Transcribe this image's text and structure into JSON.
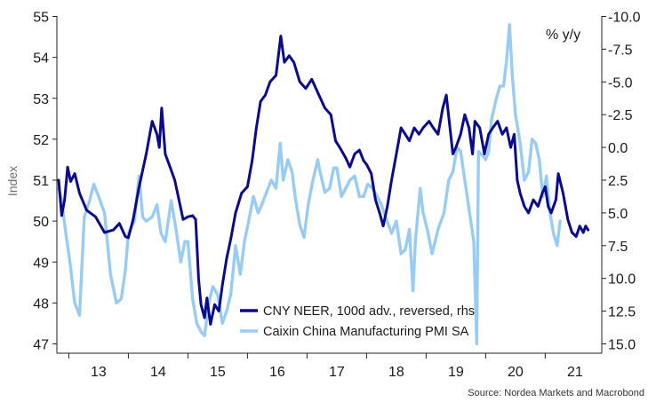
{
  "chart_data": {
    "type": "line",
    "ylabel_left": "Index",
    "ylabel_right": "% y/y",
    "source": "Source: Nordea Markets and Macrobond",
    "y_left": {
      "min": 47,
      "max": 55,
      "ticks": [
        47,
        48,
        49,
        50,
        51,
        52,
        53,
        54,
        55
      ],
      "tick_labels": [
        "47",
        "48",
        "49",
        "50",
        "51",
        "52",
        "53",
        "54",
        "55"
      ]
    },
    "y_right": {
      "min": -10.0,
      "max": 15.0,
      "reversed": true,
      "ticks": [
        -10.0,
        -7.5,
        -5.0,
        -2.5,
        0.0,
        2.5,
        5.0,
        7.5,
        10.0,
        12.5,
        15.0
      ],
      "tick_labels": [
        "-10.0",
        "-7.5",
        "-5.0",
        "-2.5",
        "0.0",
        "2.5",
        "5.0",
        "7.5",
        "10.0",
        "12.5",
        "15.0"
      ]
    },
    "x": {
      "min": 2012.8,
      "max": 2021.95,
      "ticks": [
        2013,
        2014,
        2015,
        2016,
        2017,
        2018,
        2019,
        2020,
        2021,
        2022
      ],
      "labels": [
        {
          "label": "13",
          "at": 2013.5
        },
        {
          "label": "14",
          "at": 2014.5
        },
        {
          "label": "15",
          "at": 2015.5
        },
        {
          "label": "16",
          "at": 2016.5
        },
        {
          "label": "17",
          "at": 2017.5
        },
        {
          "label": "18",
          "at": 2018.5
        },
        {
          "label": "19",
          "at": 2019.5
        },
        {
          "label": "20",
          "at": 2020.5
        },
        {
          "label": "21",
          "at": 2021.5
        }
      ]
    },
    "series": [
      {
        "name": "CNY NEER, 100d adv., reversed, rhs",
        "axis": "right",
        "color": "#0a0a8c",
        "points": [
          [
            2012.83,
            2.5
          ],
          [
            2012.88,
            5.2
          ],
          [
            2012.93,
            4.0
          ],
          [
            2012.98,
            1.5
          ],
          [
            2013.03,
            2.6
          ],
          [
            2013.1,
            2.0
          ],
          [
            2013.18,
            3.5
          ],
          [
            2013.3,
            4.8
          ],
          [
            2013.45,
            5.3
          ],
          [
            2013.6,
            6.5
          ],
          [
            2013.75,
            6.3
          ],
          [
            2013.85,
            5.8
          ],
          [
            2013.95,
            6.8
          ],
          [
            2014.0,
            6.9
          ],
          [
            2014.08,
            5.5
          ],
          [
            2014.18,
            3.0
          ],
          [
            2014.3,
            0.5
          ],
          [
            2014.4,
            -2.0
          ],
          [
            2014.48,
            -1.0
          ],
          [
            2014.52,
            0.0
          ],
          [
            2014.56,
            -3.0
          ],
          [
            2014.62,
            0.5
          ],
          [
            2014.7,
            1.5
          ],
          [
            2014.78,
            2.5
          ],
          [
            2014.85,
            4.0
          ],
          [
            2014.92,
            5.5
          ],
          [
            2015.0,
            5.3
          ],
          [
            2015.08,
            5.2
          ],
          [
            2015.13,
            5.5
          ],
          [
            2015.18,
            10.0
          ],
          [
            2015.22,
            12.0
          ],
          [
            2015.28,
            13.0
          ],
          [
            2015.32,
            11.5
          ],
          [
            2015.38,
            13.5
          ],
          [
            2015.45,
            12.0
          ],
          [
            2015.52,
            12.5
          ],
          [
            2015.58,
            10.5
          ],
          [
            2015.65,
            8.5
          ],
          [
            2015.72,
            7.0
          ],
          [
            2015.8,
            5.0
          ],
          [
            2015.9,
            3.5
          ],
          [
            2016.0,
            3.0
          ],
          [
            2016.08,
            1.0
          ],
          [
            2016.15,
            -1.5
          ],
          [
            2016.22,
            -3.5
          ],
          [
            2016.3,
            -4.0
          ],
          [
            2016.38,
            -5.0
          ],
          [
            2016.48,
            -5.5
          ],
          [
            2016.56,
            -8.5
          ],
          [
            2016.62,
            -6.5
          ],
          [
            2016.7,
            -7.0
          ],
          [
            2016.78,
            -6.5
          ],
          [
            2016.88,
            -5.0
          ],
          [
            2016.98,
            -4.5
          ],
          [
            2017.08,
            -5.2
          ],
          [
            2017.2,
            -4.0
          ],
          [
            2017.3,
            -3.0
          ],
          [
            2017.4,
            -2.5
          ],
          [
            2017.48,
            -0.5
          ],
          [
            2017.55,
            0.0
          ],
          [
            2017.65,
            0.8
          ],
          [
            2017.72,
            1.5
          ],
          [
            2017.8,
            0.5
          ],
          [
            2017.88,
            0.2
          ],
          [
            2017.95,
            1.0
          ],
          [
            2018.0,
            1.3
          ],
          [
            2018.08,
            2.0
          ],
          [
            2018.15,
            4.0
          ],
          [
            2018.22,
            5.0
          ],
          [
            2018.28,
            6.0
          ],
          [
            2018.35,
            4.5
          ],
          [
            2018.42,
            2.5
          ],
          [
            2018.5,
            0.5
          ],
          [
            2018.58,
            -1.5
          ],
          [
            2018.65,
            -1.0
          ],
          [
            2018.72,
            -0.5
          ],
          [
            2018.8,
            -1.5
          ],
          [
            2018.88,
            -1.0
          ],
          [
            2018.95,
            -1.5
          ],
          [
            2019.05,
            -2.0
          ],
          [
            2019.12,
            -1.5
          ],
          [
            2019.2,
            -1.0
          ],
          [
            2019.28,
            -3.0
          ],
          [
            2019.34,
            -4.0
          ],
          [
            2019.4,
            -1.5
          ],
          [
            2019.45,
            0.5
          ],
          [
            2019.5,
            0.0
          ],
          [
            2019.58,
            -1.0
          ],
          [
            2019.65,
            -2.5
          ],
          [
            2019.72,
            -1.5
          ],
          [
            2019.78,
            0.5
          ],
          [
            2019.82,
            -2.0
          ],
          [
            2019.9,
            -1.5
          ],
          [
            2019.98,
            0.5
          ],
          [
            2020.05,
            -1.0
          ],
          [
            2020.12,
            -1.5
          ],
          [
            2020.2,
            -2.0
          ],
          [
            2020.28,
            -1.0
          ],
          [
            2020.35,
            -1.5
          ],
          [
            2020.42,
            0.0
          ],
          [
            2020.48,
            -1.0
          ],
          [
            2020.53,
            2.5
          ],
          [
            2020.58,
            3.5
          ],
          [
            2020.65,
            4.5
          ],
          [
            2020.72,
            5.0
          ],
          [
            2020.8,
            4.0
          ],
          [
            2020.88,
            4.5
          ],
          [
            2020.95,
            3.5
          ],
          [
            2021.0,
            3.0
          ],
          [
            2021.05,
            4.5
          ],
          [
            2021.1,
            5.0
          ],
          [
            2021.18,
            4.0
          ],
          [
            2021.22,
            2.0
          ],
          [
            2021.3,
            3.5
          ],
          [
            2021.38,
            5.5
          ],
          [
            2021.45,
            6.5
          ],
          [
            2021.52,
            6.8
          ],
          [
            2021.58,
            6.0
          ],
          [
            2021.64,
            6.5
          ],
          [
            2021.68,
            6.0
          ],
          [
            2021.72,
            6.3
          ]
        ]
      },
      {
        "name": "Caixin China Manufacturing PMI SA",
        "axis": "left",
        "color": "#99ccf2",
        "points": [
          [
            2012.83,
            50.8
          ],
          [
            2012.88,
            50.5
          ],
          [
            2012.95,
            49.7
          ],
          [
            2013.02,
            49.0
          ],
          [
            2013.1,
            48.0
          ],
          [
            2013.18,
            47.7
          ],
          [
            2013.26,
            50.1
          ],
          [
            2013.35,
            50.5
          ],
          [
            2013.42,
            50.9
          ],
          [
            2013.5,
            50.6
          ],
          [
            2013.6,
            50.2
          ],
          [
            2013.7,
            48.7
          ],
          [
            2013.8,
            48.0
          ],
          [
            2013.88,
            48.1
          ],
          [
            2013.95,
            48.8
          ],
          [
            2014.0,
            49.7
          ],
          [
            2014.1,
            50.0
          ],
          [
            2014.18,
            51.1
          ],
          [
            2014.24,
            50.1
          ],
          [
            2014.3,
            50.0
          ],
          [
            2014.4,
            50.1
          ],
          [
            2014.48,
            50.4
          ],
          [
            2014.55,
            49.7
          ],
          [
            2014.62,
            49.5
          ],
          [
            2014.72,
            50.5
          ],
          [
            2014.8,
            49.8
          ],
          [
            2014.88,
            49.0
          ],
          [
            2014.95,
            49.5
          ],
          [
            2015.0,
            49.5
          ],
          [
            2015.08,
            48.1
          ],
          [
            2015.15,
            47.5
          ],
          [
            2015.22,
            47.3
          ],
          [
            2015.28,
            47.2
          ],
          [
            2015.35,
            48.0
          ],
          [
            2015.42,
            48.4
          ],
          [
            2015.5,
            48.2
          ],
          [
            2015.58,
            47.5
          ],
          [
            2015.65,
            47.8
          ],
          [
            2015.72,
            48.2
          ],
          [
            2015.8,
            49.4
          ],
          [
            2015.88,
            48.7
          ],
          [
            2015.95,
            49.5
          ],
          [
            2016.02,
            50.0
          ],
          [
            2016.1,
            50.6
          ],
          [
            2016.18,
            50.2
          ],
          [
            2016.24,
            50.4
          ],
          [
            2016.32,
            50.7
          ],
          [
            2016.4,
            51.0
          ],
          [
            2016.48,
            50.8
          ],
          [
            2016.55,
            51.9
          ],
          [
            2016.6,
            51.0
          ],
          [
            2016.68,
            51.5
          ],
          [
            2016.75,
            51.2
          ],
          [
            2016.8,
            50.6
          ],
          [
            2016.88,
            49.9
          ],
          [
            2016.95,
            49.6
          ],
          [
            2017.02,
            50.4
          ],
          [
            2017.1,
            51.0
          ],
          [
            2017.18,
            51.5
          ],
          [
            2017.22,
            51.2
          ],
          [
            2017.3,
            50.7
          ],
          [
            2017.38,
            50.8
          ],
          [
            2017.45,
            51.3
          ],
          [
            2017.5,
            51.3
          ],
          [
            2017.58,
            50.6
          ],
          [
            2017.65,
            50.8
          ],
          [
            2017.72,
            51.0
          ],
          [
            2017.8,
            51.1
          ],
          [
            2017.88,
            50.6
          ],
          [
            2017.95,
            50.6
          ],
          [
            2018.02,
            50.9
          ],
          [
            2018.1,
            50.8
          ],
          [
            2018.18,
            50.6
          ],
          [
            2018.25,
            50.4
          ],
          [
            2018.32,
            50.1
          ],
          [
            2018.42,
            49.7
          ],
          [
            2018.5,
            50.0
          ],
          [
            2018.58,
            49.2
          ],
          [
            2018.65,
            49.3
          ],
          [
            2018.72,
            49.8
          ],
          [
            2018.78,
            48.3
          ],
          [
            2018.82,
            49.5
          ],
          [
            2018.9,
            50.8
          ],
          [
            2018.95,
            50.2
          ],
          [
            2019.02,
            49.8
          ],
          [
            2019.1,
            49.2
          ],
          [
            2019.2,
            49.8
          ],
          [
            2019.3,
            50.2
          ],
          [
            2019.38,
            51.0
          ],
          [
            2019.45,
            51.2
          ],
          [
            2019.52,
            51.8
          ],
          [
            2019.58,
            51.7
          ],
          [
            2019.65,
            51.0
          ],
          [
            2019.72,
            50.3
          ],
          [
            2019.8,
            49.5
          ],
          [
            2019.85,
            47.0
          ],
          [
            2019.88,
            51.7
          ],
          [
            2019.95,
            51.6
          ],
          [
            2020.0,
            51.5
          ],
          [
            2020.05,
            51.7
          ],
          [
            2020.1,
            52.5
          ],
          [
            2020.18,
            53.0
          ],
          [
            2020.24,
            53.3
          ],
          [
            2020.3,
            53.3
          ],
          [
            2020.35,
            53.9
          ],
          [
            2020.4,
            54.8
          ],
          [
            2020.45,
            53.5
          ],
          [
            2020.5,
            52.6
          ],
          [
            2020.58,
            51.9
          ],
          [
            2020.65,
            51.0
          ],
          [
            2020.72,
            51.2
          ],
          [
            2020.78,
            52.0
          ],
          [
            2020.84,
            51.9
          ],
          [
            2020.9,
            51.5
          ],
          [
            2020.96,
            50.6
          ],
          [
            2021.02,
            51.1
          ],
          [
            2021.08,
            50.2
          ],
          [
            2021.14,
            49.7
          ],
          [
            2021.2,
            49.4
          ],
          [
            2021.25,
            50.0
          ]
        ]
      }
    ],
    "legend": {
      "placement": "bottom-left"
    },
    "grid": false
  }
}
